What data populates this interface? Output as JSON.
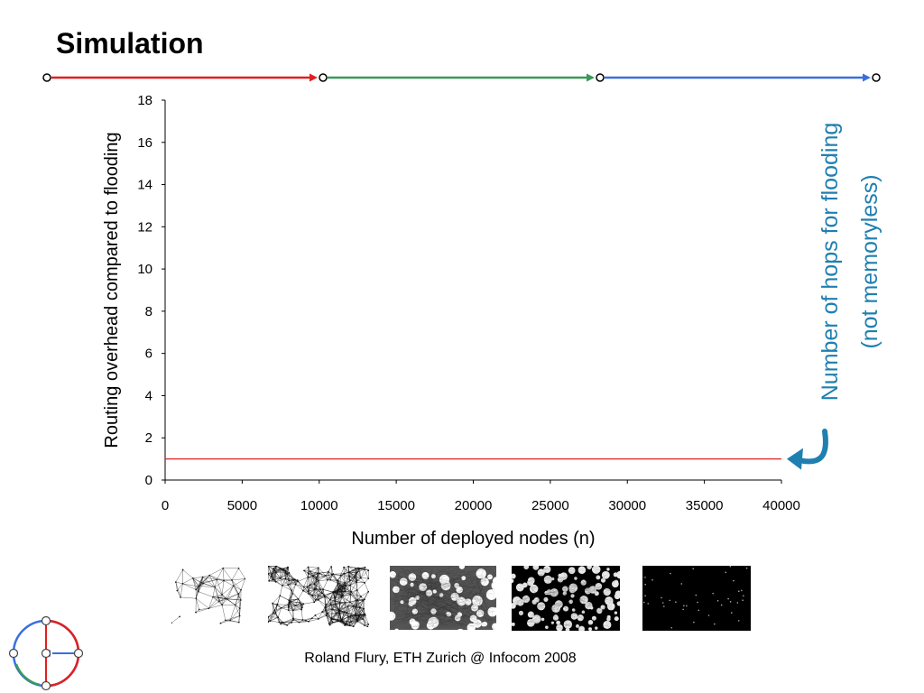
{
  "slide": {
    "title": "Simulation",
    "footer": "Roland Flury, ETH Zurich @ Infocom 2008",
    "progress_colors": [
      "#e02020",
      "#3a9a5a",
      "#3a6fe0"
    ]
  },
  "chart_data": {
    "type": "line",
    "title": "",
    "xlabel": "Number of deployed nodes   (n)",
    "ylabel": "Routing overhead compared to flooding",
    "xlim": [
      0,
      40000
    ],
    "ylim": [
      0,
      18
    ],
    "xticks": [
      "0",
      "5000",
      "10000",
      "15000",
      "20000",
      "25000",
      "30000",
      "35000",
      "40000"
    ],
    "yticks": [
      "0",
      "2",
      "4",
      "6",
      "8",
      "10",
      "12",
      "14",
      "16",
      "18"
    ],
    "grid": false,
    "series": [
      {
        "x": [
          0,
          40000
        ],
        "y": [
          1,
          1
        ],
        "color": "#e02020"
      }
    ],
    "annotation": {
      "lines": [
        "Number of hops for flooding",
        "(not memoryless)"
      ],
      "color": "#1f7fb0",
      "arrow_target_y": 1
    }
  },
  "thumbnails": [
    {
      "density": "sparse"
    },
    {
      "density": "light"
    },
    {
      "density": "medium"
    },
    {
      "density": "dense"
    },
    {
      "density": "very-dense"
    }
  ]
}
